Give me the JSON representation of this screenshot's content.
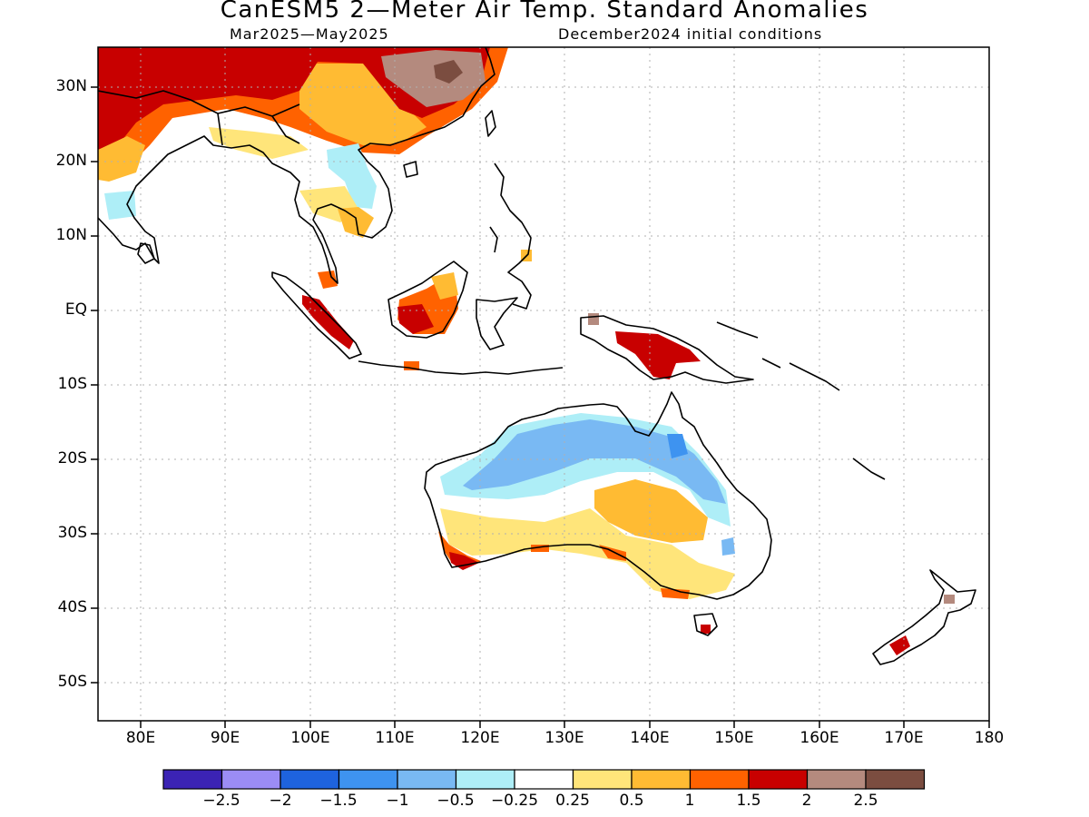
{
  "title": "CanESM5 2—Meter Air Temp. Standard Anomalies",
  "subtitle_left": "Mar2025—May2025",
  "subtitle_right": "December2024 initial conditions",
  "lat_ticks": [
    "30N",
    "20N",
    "10N",
    "EQ",
    "10S",
    "20S",
    "30S",
    "40S",
    "50S"
  ],
  "lon_ticks": [
    "80E",
    "90E",
    "100E",
    "110E",
    "120E",
    "130E",
    "140E",
    "150E",
    "160E",
    "170E",
    "180"
  ],
  "colorbar": {
    "colors": [
      "#3b23b4",
      "#9b8cf5",
      "#1e63de",
      "#3e93f0",
      "#79b9f3",
      "#aeeef7",
      "#ffffff",
      "#ffe57a",
      "#ffbb33",
      "#ff6200",
      "#c80000",
      "#b48a7e",
      "#7b4d40"
    ],
    "labels": [
      "−2.5",
      "−2",
      "−1.5",
      "−1",
      "−0.5",
      "−0.25",
      "0.25",
      "0.5",
      "1",
      "1.5",
      "2",
      "2.5"
    ]
  },
  "chart_data": {
    "type": "heatmap",
    "variable": "2-Meter Air Temp. Standard Anomalies",
    "lon_range": [
      75,
      180
    ],
    "lat_range": [
      -55,
      35
    ],
    "grid": true,
    "regions": [
      {
        "name": "South/East Asia north of ~20N",
        "anomaly": ">1.5"
      },
      {
        "name": "China / Tibet interior",
        "anomaly": ">2"
      },
      {
        "name": "Indochina interior",
        "anomaly": "-0.5 to -0.25"
      },
      {
        "name": "Borneo / Sumatra",
        "anomaly": "1 to 2"
      },
      {
        "name": "New Guinea",
        "anomaly": "1.5 to 2.5"
      },
      {
        "name": "Northern Australia",
        "anomaly": "-1.5 to -0.25"
      },
      {
        "name": "Central/southern Australia",
        "anomaly": "0.25 to 1"
      },
      {
        "name": "Southwest Australia",
        "anomaly": "1 to 2.5"
      },
      {
        "name": "New Zealand South Island",
        "anomaly": "1.5 to 2.5"
      }
    ]
  }
}
